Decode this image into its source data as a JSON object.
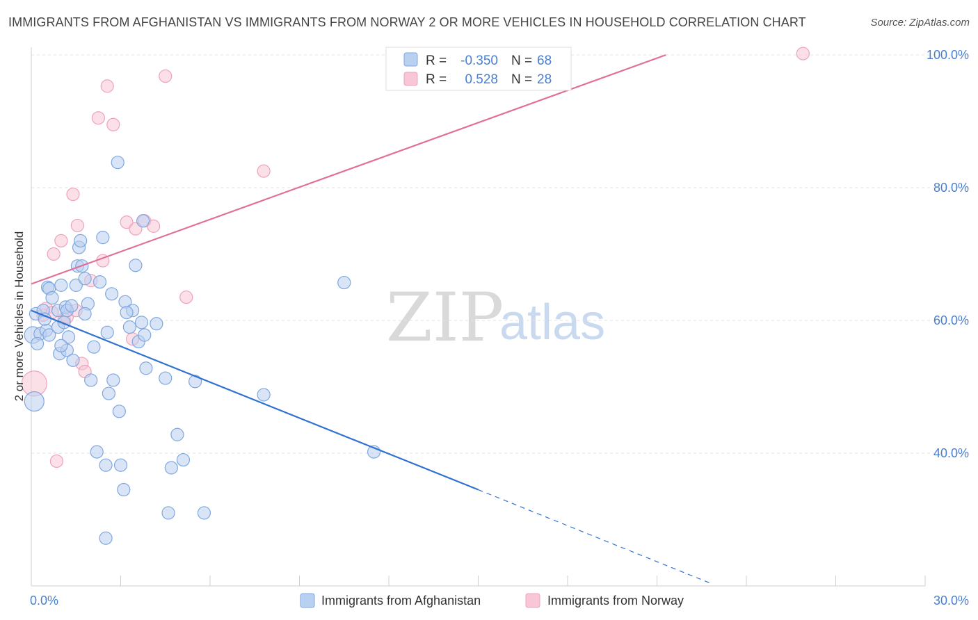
{
  "title": "IMMIGRANTS FROM AFGHANISTAN VS IMMIGRANTS FROM NORWAY 2 OR MORE VEHICLES IN HOUSEHOLD CORRELATION CHART",
  "source": "Source: ZipAtlas.com",
  "watermark": {
    "zip": "ZIP",
    "atlas": "atlas"
  },
  "chart_data": {
    "type": "scatter",
    "ylabel": "2 or more Vehicles in Household",
    "xlim": [
      0,
      30
    ],
    "ylim": [
      20,
      100
    ],
    "x_tick_labels": [
      {
        "value": 0,
        "label": "0.0%"
      },
      {
        "value": 30,
        "label": "30.0%"
      }
    ],
    "y_tick_labels": [
      {
        "value": 40,
        "label": "40.0%"
      },
      {
        "value": 60,
        "label": "60.0%"
      },
      {
        "value": 80,
        "label": "80.0%"
      },
      {
        "value": 100,
        "label": "100.0%"
      }
    ],
    "legend_stats": [
      {
        "r_label": "R = ",
        "r_value": "-0.350",
        "n_label": "N = ",
        "n_value": "68"
      },
      {
        "r_label": "R = ",
        "r_value": "0.528",
        "n_label": "N = ",
        "n_value": "28"
      }
    ],
    "series": [
      {
        "name": "Immigrants from Afghanistan",
        "color": "#7fa7e0",
        "fill": "#b9d0f1",
        "line_color": "#2f72d0",
        "trend": {
          "x0": 0,
          "y0": 61.5,
          "x1": 15,
          "y1": 34.5,
          "dash_to_x": 22.8,
          "dash_to_y": 20.4
        },
        "points": [
          [
            0.05,
            57.8
          ],
          [
            0.1,
            47.8
          ],
          [
            0.15,
            61
          ],
          [
            0.3,
            58
          ],
          [
            0.4,
            61.5
          ],
          [
            0.5,
            58.5
          ],
          [
            0.55,
            65
          ],
          [
            0.6,
            64.8
          ],
          [
            0.6,
            57.8
          ],
          [
            0.9,
            61.5
          ],
          [
            0.9,
            59
          ],
          [
            0.95,
            55
          ],
          [
            1.0,
            65.3
          ],
          [
            1.1,
            59.7
          ],
          [
            1.2,
            55.5
          ],
          [
            1.15,
            62
          ],
          [
            1.2,
            61.5
          ],
          [
            1.25,
            57.5
          ],
          [
            1.35,
            62.2
          ],
          [
            1.4,
            54
          ],
          [
            1.5,
            65.3
          ],
          [
            1.55,
            68.2
          ],
          [
            1.6,
            71
          ],
          [
            1.65,
            72
          ],
          [
            1.7,
            68.2
          ],
          [
            1.8,
            66.3
          ],
          [
            1.9,
            62.5
          ],
          [
            2.0,
            51
          ],
          [
            2.1,
            56
          ],
          [
            2.2,
            40.2
          ],
          [
            2.3,
            65.8
          ],
          [
            2.4,
            72.5
          ],
          [
            2.5,
            38.2
          ],
          [
            2.55,
            58.2
          ],
          [
            2.6,
            49
          ],
          [
            2.7,
            64
          ],
          [
            2.75,
            51
          ],
          [
            2.9,
            83.8
          ],
          [
            2.95,
            46.3
          ],
          [
            3.0,
            38.2
          ],
          [
            3.1,
            34.5
          ],
          [
            3.15,
            62.8
          ],
          [
            3.3,
            59
          ],
          [
            3.4,
            61.5
          ],
          [
            3.5,
            68.3
          ],
          [
            3.6,
            56.8
          ],
          [
            3.7,
            59.7
          ],
          [
            3.75,
            75
          ],
          [
            3.8,
            57.8
          ],
          [
            3.85,
            52.8
          ],
          [
            4.2,
            59.5
          ],
          [
            4.5,
            51.3
          ],
          [
            4.6,
            31
          ],
          [
            4.7,
            37.8
          ],
          [
            4.9,
            42.8
          ],
          [
            5.1,
            39
          ],
          [
            5.5,
            50.8
          ],
          [
            5.8,
            31
          ],
          [
            7.8,
            48.8
          ],
          [
            10.5,
            65.7
          ],
          [
            11.5,
            40.2
          ],
          [
            2.5,
            27.2
          ],
          [
            0.2,
            56.5
          ],
          [
            1.0,
            56.2
          ],
          [
            0.7,
            63.4
          ],
          [
            3.2,
            61.2
          ],
          [
            1.8,
            61.0
          ],
          [
            0.45,
            60.2
          ]
        ],
        "sizes": {
          "1": 14,
          "0": 12
        }
      },
      {
        "name": "Immigrants from Norway",
        "color": "#eda3bd",
        "fill": "#f7c7d6",
        "line_color": "#e07098",
        "trend": {
          "x0": 0,
          "y0": 65.5,
          "x1": 21.3,
          "y1": 100
        },
        "points": [
          [
            0.1,
            50.5
          ],
          [
            0.4,
            60.8
          ],
          [
            0.5,
            61.8
          ],
          [
            0.7,
            61.2
          ],
          [
            0.75,
            70
          ],
          [
            0.85,
            38.8
          ],
          [
            1.0,
            72
          ],
          [
            1.1,
            60.2
          ],
          [
            1.2,
            60.5
          ],
          [
            1.4,
            79
          ],
          [
            1.55,
            74.3
          ],
          [
            1.7,
            53.5
          ],
          [
            1.8,
            52.3
          ],
          [
            2.0,
            66
          ],
          [
            2.25,
            90.5
          ],
          [
            2.4,
            69
          ],
          [
            2.55,
            95.3
          ],
          [
            2.75,
            89.5
          ],
          [
            3.2,
            74.8
          ],
          [
            3.4,
            57.2
          ],
          [
            3.5,
            73.8
          ],
          [
            3.8,
            75
          ],
          [
            4.1,
            74.2
          ],
          [
            4.5,
            96.8
          ],
          [
            5.2,
            63.5
          ],
          [
            7.8,
            82.5
          ],
          [
            25.9,
            100.2
          ],
          [
            1.5,
            61.5
          ]
        ],
        "sizes": {
          "0": 18
        }
      }
    ]
  },
  "bottom_legend": [
    "Immigrants from Afghanistan",
    "Immigrants from Norway"
  ]
}
